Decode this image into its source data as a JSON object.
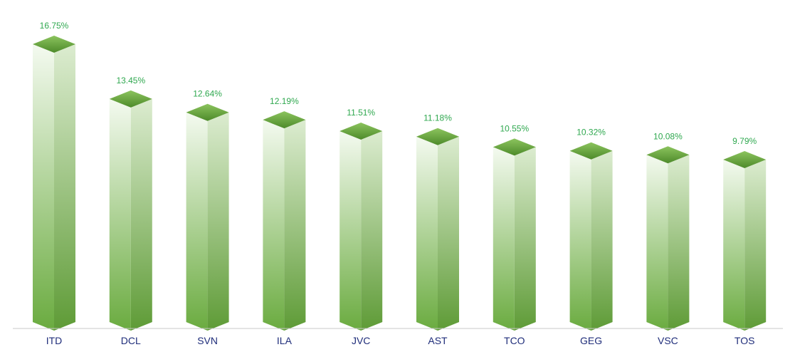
{
  "chart_data": {
    "type": "bar",
    "categories": [
      "ITD",
      "DCL",
      "SVN",
      "ILA",
      "JVC",
      "AST",
      "TCO",
      "GEG",
      "VSC",
      "TOS"
    ],
    "values": [
      16.75,
      13.45,
      12.64,
      12.19,
      11.51,
      11.18,
      10.55,
      10.32,
      10.08,
      9.79
    ],
    "value_labels": [
      "16.75%",
      "13.45%",
      "12.64%",
      "12.19%",
      "11.51%",
      "11.18%",
      "10.55%",
      "10.32%",
      "10.08%",
      "9.79%"
    ],
    "title": "",
    "xlabel": "",
    "ylabel": "",
    "ylim": [
      0,
      16.75
    ],
    "grid": false,
    "legend": "none",
    "style": "3d-column-gradient",
    "colors": {
      "bar_light": "#f4faf0",
      "bar_dark": "#6aab3f",
      "side_light": "#dcecd0",
      "side_dark": "#5e9b36",
      "top_light": "#8cc45e",
      "top_dark": "#4d8a2a",
      "value_label": "#2fa84f",
      "category_label": "#1f2d7a",
      "axis_line": "#c8c8c8"
    }
  }
}
